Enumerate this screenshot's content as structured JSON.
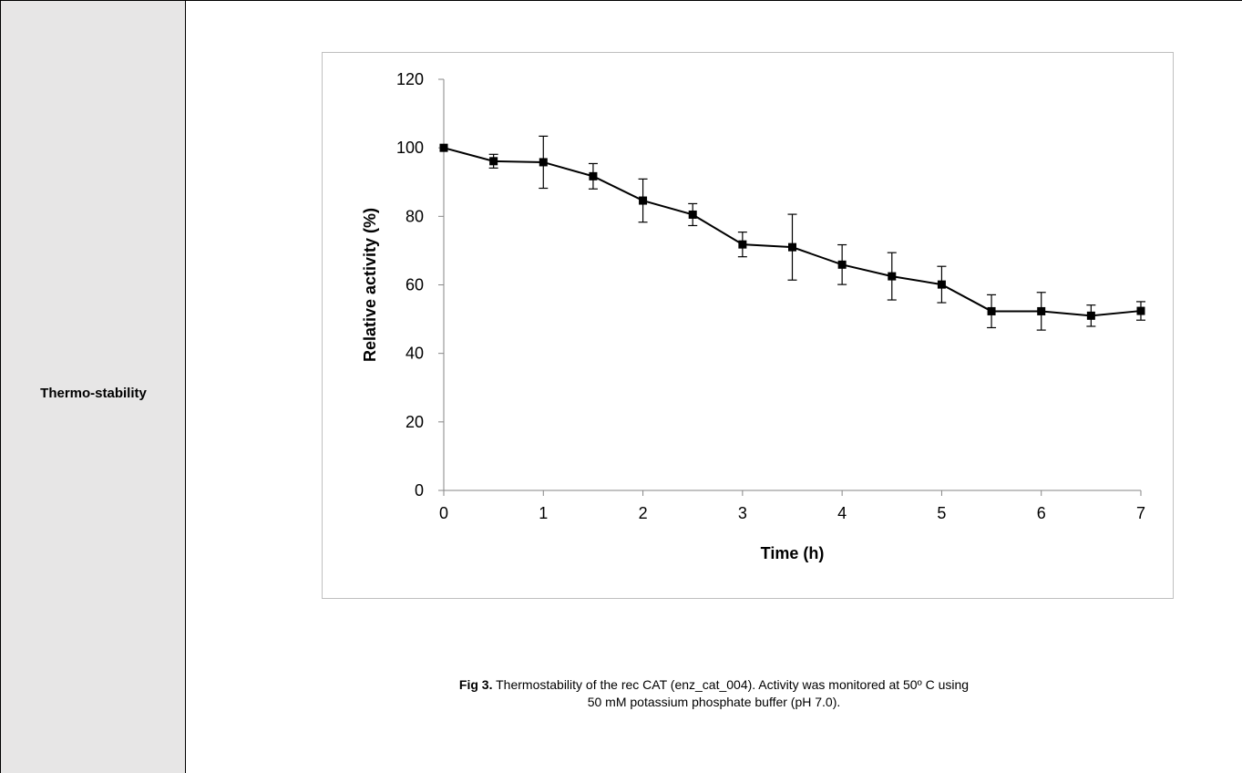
{
  "row_label": "Thermo-stability",
  "caption": {
    "fig_label": "Fig 3.",
    "line1": " Thermostability of the rec CAT (enz_cat_004). Activity was monitored at 50º C using",
    "line2": "50 mM potassium phosphate buffer (pH 7.0)."
  },
  "chart_data": {
    "type": "line",
    "xlabel": "Time (h)",
    "ylabel": "Relative activity (%)",
    "xlim": [
      0,
      7
    ],
    "ylim": [
      0,
      120
    ],
    "xticks": [
      0,
      1,
      2,
      3,
      4,
      5,
      6,
      7
    ],
    "yticks": [
      0,
      20,
      40,
      60,
      80,
      100,
      120
    ],
    "grid": false,
    "marker": "square",
    "series": [
      {
        "x": [
          0,
          0.5,
          1,
          1.5,
          2,
          2.5,
          3,
          3.5,
          4,
          4.5,
          5,
          5.5,
          6,
          6.5,
          7
        ],
        "values": [
          100,
          96.1,
          95.8,
          91.7,
          84.6,
          80.5,
          71.8,
          71.0,
          65.9,
          62.5,
          60.1,
          52.3,
          52.3,
          51.0,
          52.4
        ],
        "error": [
          0,
          2.0,
          7.6,
          3.7,
          6.3,
          3.2,
          3.6,
          9.6,
          5.8,
          6.9,
          5.3,
          4.8,
          5.5,
          3.1,
          2.7
        ]
      }
    ],
    "colors": {
      "line": "#000000",
      "axis": "#868686"
    }
  }
}
